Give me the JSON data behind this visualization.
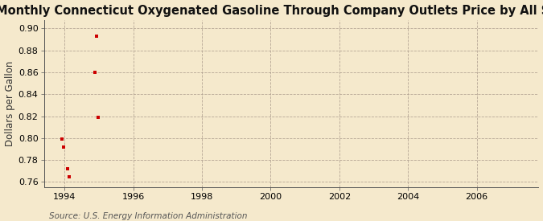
{
  "title": "Monthly Connecticut Oxygenated Gasoline Through Company Outlets Price by All Sellers",
  "ylabel": "Dollars per Gallon",
  "source": "Source: U.S. Energy Information Administration",
  "background_color": "#f5e9cc",
  "data_points": [
    [
      1993.92,
      0.799
    ],
    [
      1993.97,
      0.792
    ],
    [
      1994.08,
      0.772
    ],
    [
      1994.13,
      0.765
    ],
    [
      1994.88,
      0.86
    ],
    [
      1994.93,
      0.893
    ],
    [
      1994.98,
      0.819
    ]
  ],
  "marker_color": "#cc0000",
  "marker": "s",
  "marker_size": 3.5,
  "xlim": [
    1993.4,
    2007.8
  ],
  "ylim": [
    0.755,
    0.908
  ],
  "xticks": [
    1994,
    1996,
    1998,
    2000,
    2002,
    2004,
    2006
  ],
  "yticks": [
    0.76,
    0.78,
    0.8,
    0.82,
    0.84,
    0.86,
    0.88,
    0.9
  ],
  "grid_color": "#b0a090",
  "grid_linestyle": "--",
  "title_fontsize": 10.5,
  "label_fontsize": 8.5,
  "tick_fontsize": 8,
  "source_fontsize": 7.5
}
